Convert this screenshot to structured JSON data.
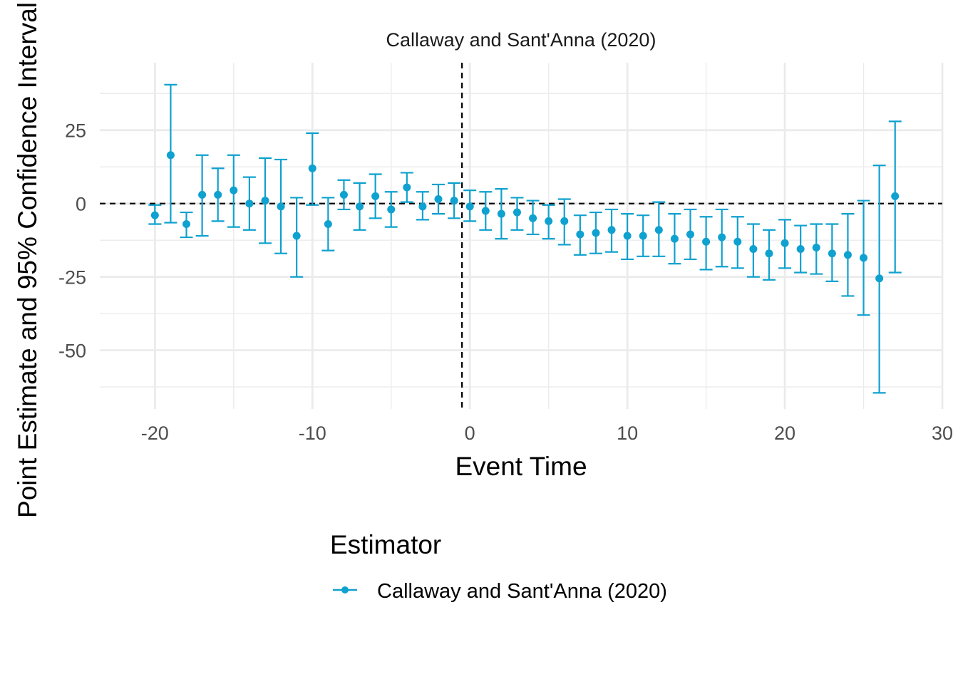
{
  "chart_data": {
    "type": "scatter",
    "title": "Callaway and Sant'Anna (2020)",
    "xlabel": "Event Time",
    "ylabel": "Point Estimate and 95% Confidence Interval",
    "xlim": [
      -23.5,
      30
    ],
    "ylim": [
      -70,
      48
    ],
    "x_ticks": [
      -20,
      -10,
      0,
      10,
      20,
      30
    ],
    "x_tick_labels": [
      "-20",
      "-10",
      "0",
      "10",
      "20",
      "30"
    ],
    "y_ticks": [
      25,
      0,
      -25,
      -50
    ],
    "y_tick_labels": [
      "25",
      "0",
      "-25",
      "-50"
    ],
    "grid": true,
    "reference_lines": {
      "horizontal_y": 0,
      "vertical_x": -0.5
    },
    "legend": {
      "title": "Estimator",
      "position": "bottom",
      "entries": [
        "Callaway and Sant'Anna (2020)"
      ]
    },
    "series": [
      {
        "name": "Callaway and Sant'Anna (2020)",
        "color": "#0fa1cf",
        "points": [
          {
            "x": -20,
            "y": -4,
            "lo": -7,
            "hi": -0.5
          },
          {
            "x": -19,
            "y": 16.5,
            "lo": -6.5,
            "hi": 40.5
          },
          {
            "x": -18,
            "y": -7,
            "lo": -11.5,
            "hi": -3
          },
          {
            "x": -17,
            "y": 3,
            "lo": -11,
            "hi": 16.5
          },
          {
            "x": -16,
            "y": 3,
            "lo": -6,
            "hi": 12
          },
          {
            "x": -15,
            "y": 4.5,
            "lo": -8,
            "hi": 16.5
          },
          {
            "x": -14,
            "y": 0,
            "lo": -9,
            "hi": 9
          },
          {
            "x": -13,
            "y": 1,
            "lo": -13.5,
            "hi": 15.5
          },
          {
            "x": -12,
            "y": -1,
            "lo": -17,
            "hi": 15
          },
          {
            "x": -11,
            "y": -11,
            "lo": -25,
            "hi": 2
          },
          {
            "x": -10,
            "y": 12,
            "lo": -0.5,
            "hi": 24
          },
          {
            "x": -9,
            "y": -7,
            "lo": -16,
            "hi": 2
          },
          {
            "x": -8,
            "y": 3,
            "lo": -2,
            "hi": 8
          },
          {
            "x": -7,
            "y": -1,
            "lo": -9,
            "hi": 7
          },
          {
            "x": -6,
            "y": 2.5,
            "lo": -5,
            "hi": 10
          },
          {
            "x": -5,
            "y": -2,
            "lo": -8,
            "hi": 4
          },
          {
            "x": -4,
            "y": 5.5,
            "lo": 0.5,
            "hi": 10.5
          },
          {
            "x": -3,
            "y": -1,
            "lo": -5.5,
            "hi": 4
          },
          {
            "x": -2,
            "y": 1.5,
            "lo": -3.5,
            "hi": 6.5
          },
          {
            "x": -1,
            "y": 1,
            "lo": -5,
            "hi": 7
          },
          {
            "x": 0,
            "y": -1,
            "lo": -6,
            "hi": 4.5
          },
          {
            "x": 1,
            "y": -2.5,
            "lo": -9,
            "hi": 4
          },
          {
            "x": 2,
            "y": -3.5,
            "lo": -12,
            "hi": 5
          },
          {
            "x": 3,
            "y": -3,
            "lo": -9,
            "hi": 2
          },
          {
            "x": 4,
            "y": -5,
            "lo": -10.5,
            "hi": 1
          },
          {
            "x": 5,
            "y": -6,
            "lo": -12,
            "hi": -0.5
          },
          {
            "x": 6,
            "y": -6,
            "lo": -14,
            "hi": 1.5
          },
          {
            "x": 7,
            "y": -10.5,
            "lo": -17.5,
            "hi": -4
          },
          {
            "x": 8,
            "y": -10,
            "lo": -17,
            "hi": -3
          },
          {
            "x": 9,
            "y": -9,
            "lo": -16.5,
            "hi": -2
          },
          {
            "x": 10,
            "y": -11,
            "lo": -19,
            "hi": -3.5
          },
          {
            "x": 11,
            "y": -11,
            "lo": -18,
            "hi": -4
          },
          {
            "x": 12,
            "y": -9,
            "lo": -18,
            "hi": 0.5
          },
          {
            "x": 13,
            "y": -12,
            "lo": -20.5,
            "hi": -3.5
          },
          {
            "x": 14,
            "y": -10.5,
            "lo": -19,
            "hi": -2
          },
          {
            "x": 15,
            "y": -13,
            "lo": -22.5,
            "hi": -4.5
          },
          {
            "x": 16,
            "y": -11.5,
            "lo": -21.5,
            "hi": -2
          },
          {
            "x": 17,
            "y": -13,
            "lo": -22,
            "hi": -4.5
          },
          {
            "x": 18,
            "y": -15.5,
            "lo": -25,
            "hi": -7
          },
          {
            "x": 19,
            "y": -17,
            "lo": -26,
            "hi": -9
          },
          {
            "x": 20,
            "y": -13.5,
            "lo": -22,
            "hi": -5.5
          },
          {
            "x": 21,
            "y": -15.5,
            "lo": -23.5,
            "hi": -7.5
          },
          {
            "x": 22,
            "y": -15,
            "lo": -24,
            "hi": -7
          },
          {
            "x": 23,
            "y": -17,
            "lo": -26.5,
            "hi": -7
          },
          {
            "x": 24,
            "y": -17.5,
            "lo": -31.5,
            "hi": -3.5
          },
          {
            "x": 25,
            "y": -18.5,
            "lo": -38,
            "hi": 1
          },
          {
            "x": 26,
            "y": -25.5,
            "lo": -64.5,
            "hi": 13
          },
          {
            "x": 27,
            "y": 2.5,
            "lo": -23.5,
            "hi": 28
          }
        ]
      }
    ]
  }
}
